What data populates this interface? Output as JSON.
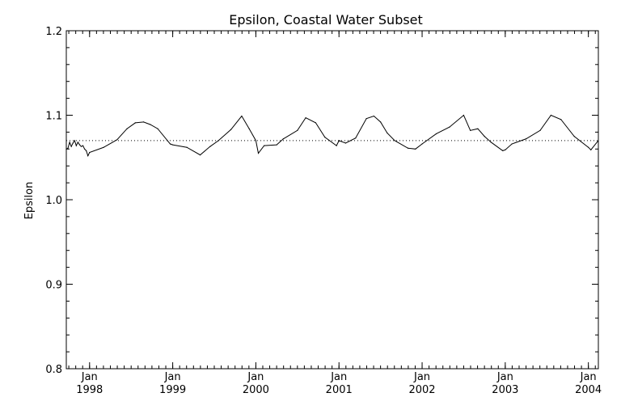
{
  "chart_data": {
    "type": "line",
    "title": "Epsilon, Coastal Water Subset",
    "xlabel": "",
    "ylabel": "Epsilon",
    "xlim": [
      1997.72,
      2004.12
    ],
    "ylim": [
      0.8,
      1.2
    ],
    "y_ticks": [
      "0.8",
      "0.9",
      "1.0",
      "1.1",
      "1.2"
    ],
    "x_ticks": [
      {
        "value": 1998.0,
        "month": "Jan",
        "year": "1998"
      },
      {
        "value": 1999.0,
        "month": "Jan",
        "year": "1999"
      },
      {
        "value": 2000.0,
        "month": "Jan",
        "year": "2000"
      },
      {
        "value": 2001.0,
        "month": "Jan",
        "year": "2001"
      },
      {
        "value": 2002.0,
        "month": "Jan",
        "year": "2002"
      },
      {
        "value": 2003.0,
        "month": "Jan",
        "year": "2003"
      },
      {
        "value": 2004.0,
        "month": "Jan",
        "year": "2004"
      }
    ],
    "reference_line": {
      "value": 1.07,
      "style": "dotted"
    },
    "grid": false,
    "series": [
      {
        "x": [
          1997.72,
          1997.74,
          1997.76,
          1997.78,
          1997.8,
          1997.82,
          1997.84,
          1997.86,
          1997.88,
          1997.9,
          1997.92,
          1997.94,
          1997.96,
          1997.98,
          1998.0,
          1998.17,
          1998.33,
          1998.45,
          1998.55,
          1998.65,
          1998.73,
          1998.82,
          1998.97,
          1999.0,
          1999.17,
          1999.33,
          1999.45,
          1999.55,
          1999.7,
          1999.83,
          1999.92,
          2000.0,
          2000.03,
          2000.1,
          2000.25,
          2000.33,
          2000.5,
          2000.6,
          2000.72,
          2000.83,
          2000.97,
          2001.0,
          2001.08,
          2001.2,
          2001.33,
          2001.42,
          2001.5,
          2001.58,
          2001.67,
          2001.83,
          2001.92,
          2002.0,
          2002.17,
          2002.33,
          2002.5,
          2002.58,
          2002.67,
          2002.75,
          2002.83,
          2002.97,
          2003.0,
          2003.08,
          2003.25,
          2003.42,
          2003.55,
          2003.67,
          2003.83,
          2004.0,
          2004.03,
          2004.12
        ],
        "y": [
          1.06,
          1.061,
          1.068,
          1.063,
          1.067,
          1.07,
          1.064,
          1.068,
          1.065,
          1.063,
          1.064,
          1.06,
          1.058,
          1.052,
          1.056,
          1.062,
          1.071,
          1.084,
          1.091,
          1.092,
          1.089,
          1.084,
          1.066,
          1.065,
          1.062,
          1.053,
          1.063,
          1.07,
          1.083,
          1.099,
          1.084,
          1.07,
          1.055,
          1.064,
          1.065,
          1.072,
          1.082,
          1.097,
          1.091,
          1.074,
          1.064,
          1.07,
          1.067,
          1.073,
          1.096,
          1.099,
          1.092,
          1.079,
          1.07,
          1.061,
          1.06,
          1.066,
          1.078,
          1.086,
          1.1,
          1.082,
          1.084,
          1.075,
          1.068,
          1.058,
          1.059,
          1.066,
          1.072,
          1.082,
          1.1,
          1.095,
          1.075,
          1.062,
          1.059,
          1.07
        ]
      }
    ]
  }
}
